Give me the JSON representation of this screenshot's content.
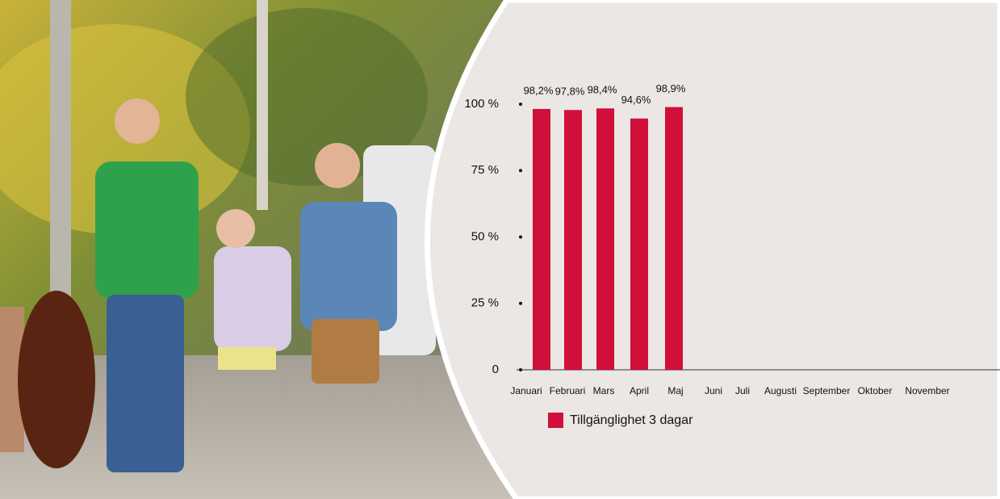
{
  "chart_data": {
    "type": "bar",
    "categories": [
      "Januari",
      "Februari",
      "Mars",
      "April",
      "Maj",
      "Juni",
      "Juli",
      "Augusti",
      "September",
      "Oktober",
      "November"
    ],
    "series": [
      {
        "name": "Tillgänglighet 3 dagar",
        "color": "#d0103a",
        "values": [
          98.2,
          97.8,
          98.4,
          94.6,
          98.9,
          null,
          null,
          null,
          null,
          null,
          null
        ],
        "value_labels": [
          "98,2%",
          "97,8%",
          "98,4%",
          "94,6%",
          "98,9%",
          null,
          null,
          null,
          null,
          null,
          null
        ]
      }
    ],
    "ylim": [
      0,
      100
    ],
    "yticks": [
      0,
      {
        "value": 25,
        "label": "25 %"
      },
      {
        "value": 50,
        "label": "50 %"
      },
      {
        "value": 75,
        "label": "75 %"
      },
      {
        "value": 100,
        "label": "100 %"
      }
    ],
    "legend": "bottom"
  }
}
